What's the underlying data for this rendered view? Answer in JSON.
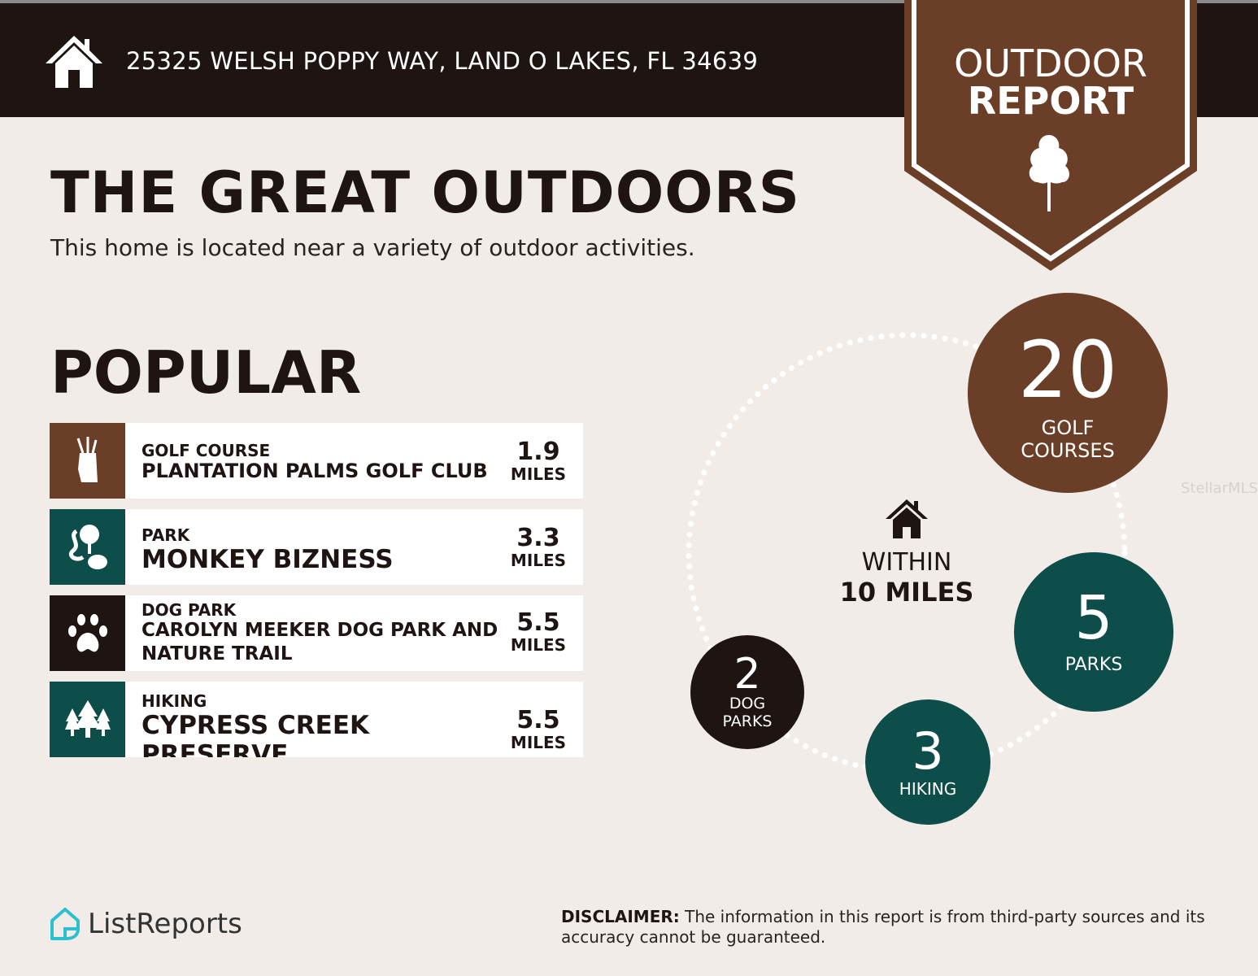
{
  "header": {
    "address": "25325 WELSH POPPY WAY, LAND O LAKES, FL 34639",
    "icon": "home-icon"
  },
  "badge": {
    "line1": "OUTDOOR",
    "line2": "REPORT",
    "icon": "tree-icon"
  },
  "title": "THE GREAT OUTDOORS",
  "subtitle": "This home is located near a variety of outdoor activities.",
  "popular": {
    "heading": "POPULAR",
    "items": [
      {
        "category": "GOLF COURSE",
        "name": "PLANTATION PALMS GOLF CLUB",
        "distance": "1.9",
        "unit": "MILES",
        "icon": "golf-bag-icon",
        "color": "#6b3f27"
      },
      {
        "category": "PARK",
        "name": "MONKEY BIZNESS",
        "distance": "3.3",
        "unit": "MILES",
        "icon": "park-icon",
        "color": "#0d4d4a"
      },
      {
        "category": "DOG PARK",
        "name": "CAROLYN MEEKER DOG PARK AND NATURE TRAIL",
        "distance": "5.5",
        "unit": "MILES",
        "icon": "paw-icon",
        "color": "#1e1512"
      },
      {
        "category": "HIKING",
        "name": "CYPRESS CREEK PRESERVE",
        "distance": "5.5",
        "unit": "MILES",
        "icon": "pine-trees-icon",
        "color": "#0d4d4a"
      }
    ]
  },
  "summary": {
    "center_line1": "WITHIN",
    "center_line2": "10 MILES",
    "counts": [
      {
        "number": "20",
        "label": "GOLF COURSES",
        "color": "#6b3f27"
      },
      {
        "number": "5",
        "label": "PARKS",
        "color": "#0d4d4a"
      },
      {
        "number": "3",
        "label": "HIKING",
        "color": "#0d4d4a"
      },
      {
        "number": "2",
        "label": "DOG PARKS",
        "color": "#1e1512"
      }
    ]
  },
  "watermark": "StellarMLS",
  "footer": {
    "logo": "ListReports",
    "disclaimer_label": "DISCLAIMER:",
    "disclaimer_text": " The information in this report is from third-party sources and its accuracy cannot be guaranteed."
  }
}
